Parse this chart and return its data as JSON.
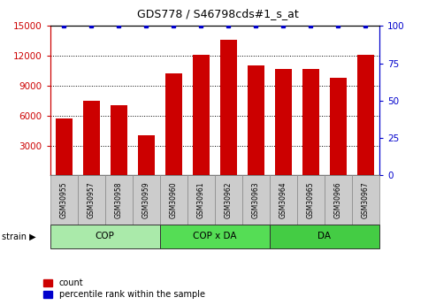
{
  "title": "GDS778 / S46798cds#1_s_at",
  "categories": [
    "GSM30955",
    "GSM30957",
    "GSM30958",
    "GSM30959",
    "GSM30960",
    "GSM30961",
    "GSM30962",
    "GSM30963",
    "GSM30964",
    "GSM30965",
    "GSM30966",
    "GSM30967"
  ],
  "counts": [
    5700,
    7500,
    7000,
    4000,
    10200,
    12100,
    13600,
    11000,
    10700,
    10700,
    9800,
    12100
  ],
  "percentile": [
    100,
    100,
    100,
    100,
    100,
    100,
    100,
    100,
    100,
    100,
    100,
    100
  ],
  "bar_color": "#cc0000",
  "dot_color": "#0000cc",
  "ylim_left": [
    0,
    15000
  ],
  "ylim_right": [
    0,
    100
  ],
  "yticks_left": [
    3000,
    6000,
    9000,
    12000,
    15000
  ],
  "yticks_right": [
    0,
    25,
    50,
    75,
    100
  ],
  "groups": [
    {
      "label": "COP",
      "start": 0,
      "end": 4,
      "color": "#aaeaaa"
    },
    {
      "label": "COP x DA",
      "start": 4,
      "end": 8,
      "color": "#55dd55"
    },
    {
      "label": "DA",
      "start": 8,
      "end": 12,
      "color": "#44cc44"
    }
  ],
  "legend_count_label": "count",
  "legend_percentile_label": "percentile rank within the sample",
  "tick_label_bg": "#cccccc",
  "left_axis_color": "#cc0000",
  "right_axis_color": "#0000cc"
}
